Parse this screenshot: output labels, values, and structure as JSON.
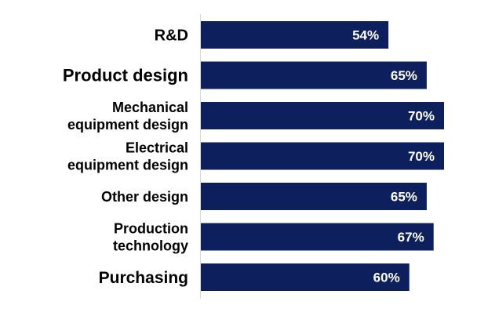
{
  "chart_data": {
    "type": "bar",
    "orientation": "horizontal",
    "categories": [
      "R&D",
      "Product design",
      "Mechanical equipment design",
      "Electrical equipment design",
      "Other design",
      "Production technology",
      "Purchasing"
    ],
    "category_lines": [
      [
        "R&D"
      ],
      [
        "Product design"
      ],
      [
        "Mechanical",
        "equipment design"
      ],
      [
        "Electrical",
        "equipment design"
      ],
      [
        "Other design"
      ],
      [
        "Production",
        "technology"
      ],
      [
        "Purchasing"
      ]
    ],
    "values": [
      54,
      65,
      70,
      70,
      65,
      67,
      60
    ],
    "data_labels": [
      "54%",
      "65%",
      "70%",
      "70%",
      "65%",
      "67%",
      "60%"
    ],
    "title": "",
    "xlabel": "",
    "ylabel": "",
    "xlim": [
      0,
      72
    ],
    "grid": false,
    "legend": "none",
    "colors": {
      "bar": "#0d1f5c",
      "axis": "#d9d9d9",
      "label_text": "#000000",
      "value_text": "#ffffff"
    }
  }
}
